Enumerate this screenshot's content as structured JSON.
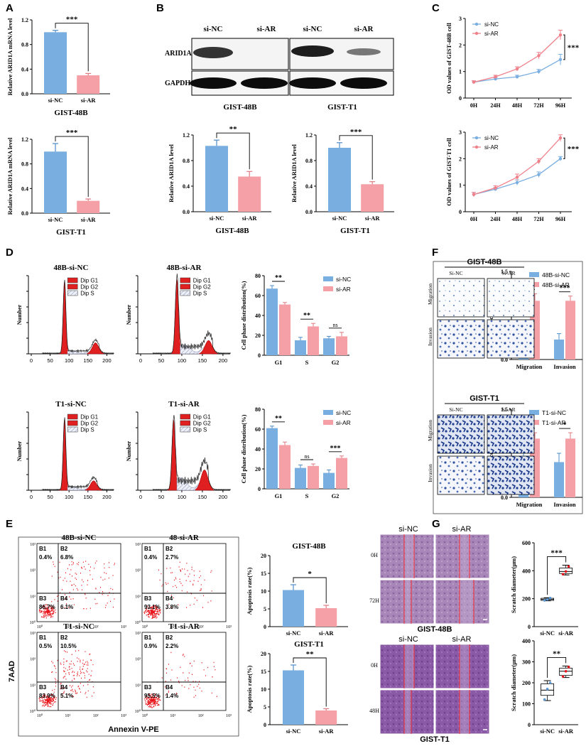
{
  "colors": {
    "blue": "#79aee0",
    "pink": "#f5a0a6",
    "blue_line": "#79aee0",
    "pink_line": "#f0808a",
    "red": "#e8141a",
    "dark_blue": "#1f3f8f",
    "purple": "#8a5aa6"
  },
  "panel_letters": {
    "A": "A",
    "B": "B",
    "C": "C",
    "D": "D",
    "E": "E",
    "F": "F",
    "G": "G"
  },
  "chart_data": [
    {
      "id": "A1",
      "type": "bar",
      "categories": [
        "si-NC",
        "si-AR"
      ],
      "values": [
        1.0,
        0.3
      ],
      "errors": [
        0.03,
        0.03
      ],
      "ylabel": "Relative ARID1A mRNA level",
      "yticks": [
        "0.0",
        "0.4",
        "0.8",
        "1.2"
      ],
      "ylim": [
        0,
        1.2
      ],
      "title": "GIST-48B",
      "sig": "***"
    },
    {
      "id": "A2",
      "type": "bar",
      "categories": [
        "si-NC",
        "si-AR"
      ],
      "values": [
        1.0,
        0.2
      ],
      "errors": [
        0.13,
        0.03
      ],
      "ylabel": "Relative ARID1A mRNA level",
      "yticks": [
        "0.0",
        "0.4",
        "0.8",
        "1.2"
      ],
      "ylim": [
        0,
        1.2
      ],
      "title": "GIST-T1",
      "sig": "***"
    },
    {
      "id": "B1",
      "type": "bar",
      "categories": [
        "si-NC",
        "si-AR"
      ],
      "values": [
        1.03,
        0.55
      ],
      "errors": [
        0.09,
        0.08
      ],
      "ylabel": "Relative ARID1A level",
      "yticks": [
        "0.0",
        "0.4",
        "0.8",
        "1.2"
      ],
      "ylim": [
        0,
        1.2
      ],
      "title": "GIST-48B",
      "sig": "**"
    },
    {
      "id": "B2",
      "type": "bar",
      "categories": [
        "si-NC",
        "si-AR"
      ],
      "values": [
        1.0,
        0.43
      ],
      "errors": [
        0.08,
        0.04
      ],
      "ylabel": "Relative ARID1A level",
      "yticks": [
        "0.0",
        "0.4",
        "0.8",
        "1.2"
      ],
      "ylim": [
        0,
        1.2
      ],
      "title": "GIST-T1",
      "sig": "***"
    },
    {
      "id": "C1",
      "type": "line",
      "x": [
        "0H",
        "24H",
        "48H",
        "72H",
        "96H"
      ],
      "series": [
        {
          "name": "si-NC",
          "values": [
            0.6,
            0.72,
            0.8,
            1.0,
            1.45
          ],
          "errors": [
            0.05,
            0.05,
            0.06,
            0.08,
            0.2
          ]
        },
        {
          "name": "si-AR",
          "values": [
            0.6,
            0.8,
            1.1,
            1.6,
            2.38
          ],
          "errors": [
            0.05,
            0.06,
            0.08,
            0.12,
            0.18
          ]
        }
      ],
      "ylabel": "OD values of GIST-48B cell",
      "yticks": [
        "0",
        "1",
        "2",
        "3"
      ],
      "ylim": [
        0,
        3
      ],
      "sig": "***"
    },
    {
      "id": "C2",
      "type": "line",
      "x": [
        "0H",
        "24H",
        "48H",
        "72H",
        "96H"
      ],
      "series": [
        {
          "name": "si-NC",
          "values": [
            0.65,
            0.85,
            1.1,
            1.4,
            2.0
          ],
          "errors": [
            0.08,
            0.06,
            0.1,
            0.1,
            0.08
          ]
        },
        {
          "name": "si-AR",
          "values": [
            0.65,
            0.9,
            1.3,
            1.9,
            2.78
          ],
          "errors": [
            0.08,
            0.08,
            0.12,
            0.1,
            0.12
          ]
        }
      ],
      "ylabel": "OD values of GIST-T1 cell",
      "yticks": [
        "0",
        "1",
        "2",
        "3"
      ],
      "ylim": [
        0,
        3
      ],
      "sig": "***"
    },
    {
      "id": "D1",
      "type": "bar",
      "categories": [
        "G1",
        "S",
        "G2"
      ],
      "series": [
        {
          "name": "si-NC",
          "values": [
            67,
            15,
            17
          ],
          "errors": [
            3,
            3,
            2
          ]
        },
        {
          "name": "si-AR",
          "values": [
            51,
            29,
            19
          ],
          "errors": [
            2,
            3,
            4
          ]
        }
      ],
      "ylabel": "Cell phase distribution(%)",
      "yticks": [
        "0",
        "20",
        "40",
        "60",
        "80"
      ],
      "ylim": [
        0,
        80
      ],
      "sig": [
        "**",
        "**",
        "ns"
      ]
    },
    {
      "id": "D2",
      "type": "bar",
      "categories": [
        "G1",
        "S",
        "G2"
      ],
      "series": [
        {
          "name": "si-NC",
          "values": [
            61,
            21,
            16
          ],
          "errors": [
            2,
            3,
            3
          ]
        },
        {
          "name": "si-AR",
          "values": [
            44,
            23,
            31
          ],
          "errors": [
            3,
            2,
            2
          ]
        }
      ],
      "ylabel": "Cell phase distribution(%)",
      "yticks": [
        "0",
        "20",
        "40",
        "60",
        "80"
      ],
      "ylim": [
        0,
        80
      ],
      "sig": [
        "**",
        "ns",
        "***"
      ]
    },
    {
      "id": "E1",
      "type": "bar",
      "categories": [
        "si-NC",
        "si-AR"
      ],
      "values": [
        10.3,
        5.2
      ],
      "errors": [
        1.5,
        0.8
      ],
      "ylabel": "Apoptosis rate(%)",
      "yticks": [
        "0",
        "5",
        "10",
        "15",
        "20"
      ],
      "ylim": [
        0,
        20
      ],
      "title": "GIST-48B",
      "sig": "*"
    },
    {
      "id": "E2",
      "type": "bar",
      "categories": [
        "si-NC",
        "si-AR"
      ],
      "values": [
        15.3,
        4.0
      ],
      "errors": [
        1.5,
        0.5
      ],
      "ylabel": "Apoptosis rate(%)",
      "yticks": [
        "0",
        "5",
        "10",
        "15",
        "20"
      ],
      "ylim": [
        0,
        20
      ],
      "title": "GIST-T1",
      "sig": "**"
    },
    {
      "id": "F1",
      "type": "bar",
      "categories": [
        "Migration",
        "Invasion"
      ],
      "series": [
        {
          "name": "48B-si-NC",
          "values": [
            0.37,
            0.34
          ],
          "errors": [
            0.07,
            0.1
          ]
        },
        {
          "name": "48B-si-AR",
          "values": [
            1.0,
            1.0
          ],
          "errors": [
            0.12,
            0.08
          ]
        }
      ],
      "ylabel": "Relative cell number",
      "yticks": [
        "0.0",
        "0.5",
        "1.0",
        "1.5"
      ],
      "ylim": [
        0,
        1.5
      ],
      "sig": [
        "**",
        "***"
      ]
    },
    {
      "id": "F2",
      "type": "bar",
      "categories": [
        "Migration",
        "Invasion"
      ],
      "series": [
        {
          "name": "T1-si-NC",
          "values": [
            0.67,
            0.6
          ],
          "errors": [
            0.13,
            0.15
          ]
        },
        {
          "name": "T1-si-AR",
          "values": [
            1.0,
            1.0
          ],
          "errors": [
            0.1,
            0.1
          ]
        }
      ],
      "ylabel": "Relative cell number",
      "yticks": [
        "0.0",
        "0.5",
        "1.0",
        "1.5"
      ],
      "ylim": [
        0,
        1.5
      ],
      "sig": [
        "*",
        "*"
      ]
    },
    {
      "id": "G1",
      "type": "box",
      "categories": [
        "si-NC",
        "si-AR"
      ],
      "boxes": [
        {
          "min": 185,
          "q1": 188,
          "med": 195,
          "q3": 203,
          "max": 207
        },
        {
          "min": 370,
          "q1": 380,
          "med": 395,
          "q3": 420,
          "max": 440
        }
      ],
      "points": [
        [
          188,
          195,
          205
        ],
        [
          375,
          395,
          430
        ]
      ],
      "ylabel": "Scratch diameter(μm)",
      "yticks": [
        "0",
        "200",
        "400",
        "600"
      ],
      "ylim": [
        0,
        600
      ],
      "sig": "***"
    },
    {
      "id": "G2",
      "type": "box",
      "categories": [
        "si-NC",
        "si-AR"
      ],
      "boxes": [
        {
          "min": 115,
          "q1": 140,
          "med": 165,
          "q3": 195,
          "max": 210
        },
        {
          "min": 225,
          "q1": 235,
          "med": 255,
          "q3": 270,
          "max": 280
        }
      ],
      "points": [
        [
          120,
          170,
          200
        ],
        [
          230,
          255,
          275
        ]
      ],
      "ylabel": "Scratch diameter(μm)",
      "yticks": [
        "0",
        "100",
        "200",
        "300",
        "400"
      ],
      "ylim": [
        0,
        400
      ],
      "sig": "**"
    },
    {
      "id": "Dhist",
      "type": "histogram",
      "xticks": [
        "0",
        "50",
        "100",
        "150",
        "200"
      ],
      "yticks": [],
      "ylabel": "Number",
      "legend": [
        "Dip G1",
        "Dip G2",
        "Dip S"
      ],
      "titles": [
        "48B-si-NC",
        "48B-si-AR",
        "T1-si-NC",
        "T1-si-AR"
      ]
    },
    {
      "id": "Eflow",
      "type": "scatter",
      "titles": [
        "48B-si-NC",
        "48-si-AR",
        "T1-si-NC",
        "T1-si-AR"
      ],
      "quadrants": [
        [
          "B1",
          "0.4%",
          "B2",
          "6.8%",
          "B3",
          "86.7%",
          "B4",
          "6.1%"
        ],
        [
          "B1",
          "0.4%",
          "B2",
          "2.7%",
          "B3",
          "93.1%",
          "B4",
          "3.8%"
        ],
        [
          "B1",
          "0.5%",
          "B2",
          "10.5%",
          "B3",
          "83.9%",
          "B4",
          "5.1%"
        ],
        [
          "B1",
          "0.9%",
          "B2",
          "2.2%",
          "B3",
          "95.5%",
          "B4",
          "1.4%"
        ]
      ],
      "ylabel": "7AAD",
      "xlabel": "Annexin V-PE",
      "axis_ticks": [
        "10⁰",
        "10¹",
        "10²",
        "10³"
      ]
    }
  ],
  "blot": {
    "headers": [
      "si-NC",
      "si-AR",
      "si-NC",
      "si-AR"
    ],
    "rows": [
      "ARID1A",
      "GAPDH"
    ],
    "cells": [
      "GIST-48B",
      "GIST-T1"
    ]
  },
  "legend_names": {
    "nc": "si-NC",
    "ar": "si-AR"
  },
  "F": {
    "titles": [
      "GIST-48B",
      "GIST-T1"
    ],
    "cols": [
      "Si-NC",
      "Si-AR"
    ],
    "rows": [
      "Migration",
      "Invasion"
    ]
  },
  "G": {
    "cols": [
      "si-NC",
      "si-AR"
    ],
    "rows_top": [
      "0H",
      "72H"
    ],
    "rows_bottom": [
      "0H",
      "48H"
    ],
    "cell_top": "GIST-48B",
    "cell_bottom": "GIST-T1"
  }
}
